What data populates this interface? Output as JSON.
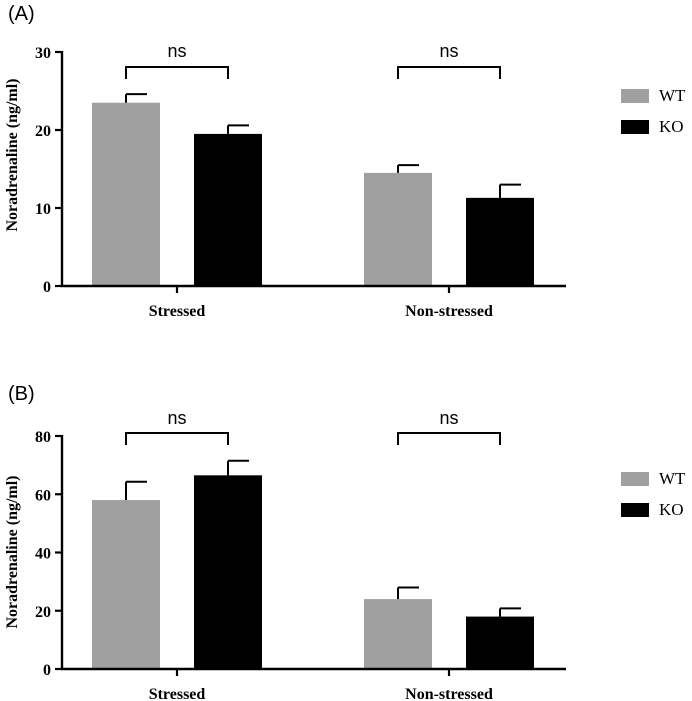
{
  "colors": {
    "WT": "#a0a0a0",
    "KO": "#000000",
    "axis": "#000000"
  },
  "chart_data": [
    {
      "type": "bar",
      "panel_label": "(A)",
      "title": "",
      "xlabel": "",
      "ylabel": "Noradrenaline (ng/ml)",
      "ylim": [
        0,
        30
      ],
      "yticks": [
        0,
        10,
        20,
        30
      ],
      "categories": [
        "Stressed",
        "Non-stressed"
      ],
      "series": [
        {
          "name": "WT",
          "values": [
            23.5,
            14.5
          ],
          "errors": [
            1.1,
            1.0
          ]
        },
        {
          "name": "KO",
          "values": [
            19.5,
            11.3
          ],
          "errors": [
            1.1,
            1.7
          ]
        }
      ],
      "comparisons": [
        "ns",
        "ns"
      ],
      "legend": [
        "WT",
        "KO"
      ],
      "legend_position": "right"
    },
    {
      "type": "bar",
      "panel_label": "(B)",
      "title": "",
      "xlabel": "",
      "ylabel": "Noradrenaline (ng/ml)",
      "ylim": [
        0,
        80
      ],
      "yticks": [
        0,
        20,
        40,
        60,
        80
      ],
      "categories": [
        "Stressed",
        "Non-stressed"
      ],
      "series": [
        {
          "name": "WT",
          "values": [
            58.0,
            24.0
          ],
          "errors": [
            6.3,
            4.0
          ]
        },
        {
          "name": "KO",
          "values": [
            66.5,
            18.0
          ],
          "errors": [
            5.0,
            2.8
          ]
        }
      ],
      "comparisons": [
        "ns",
        "ns"
      ],
      "legend": [
        "WT",
        "KO"
      ],
      "legend_position": "right"
    }
  ]
}
